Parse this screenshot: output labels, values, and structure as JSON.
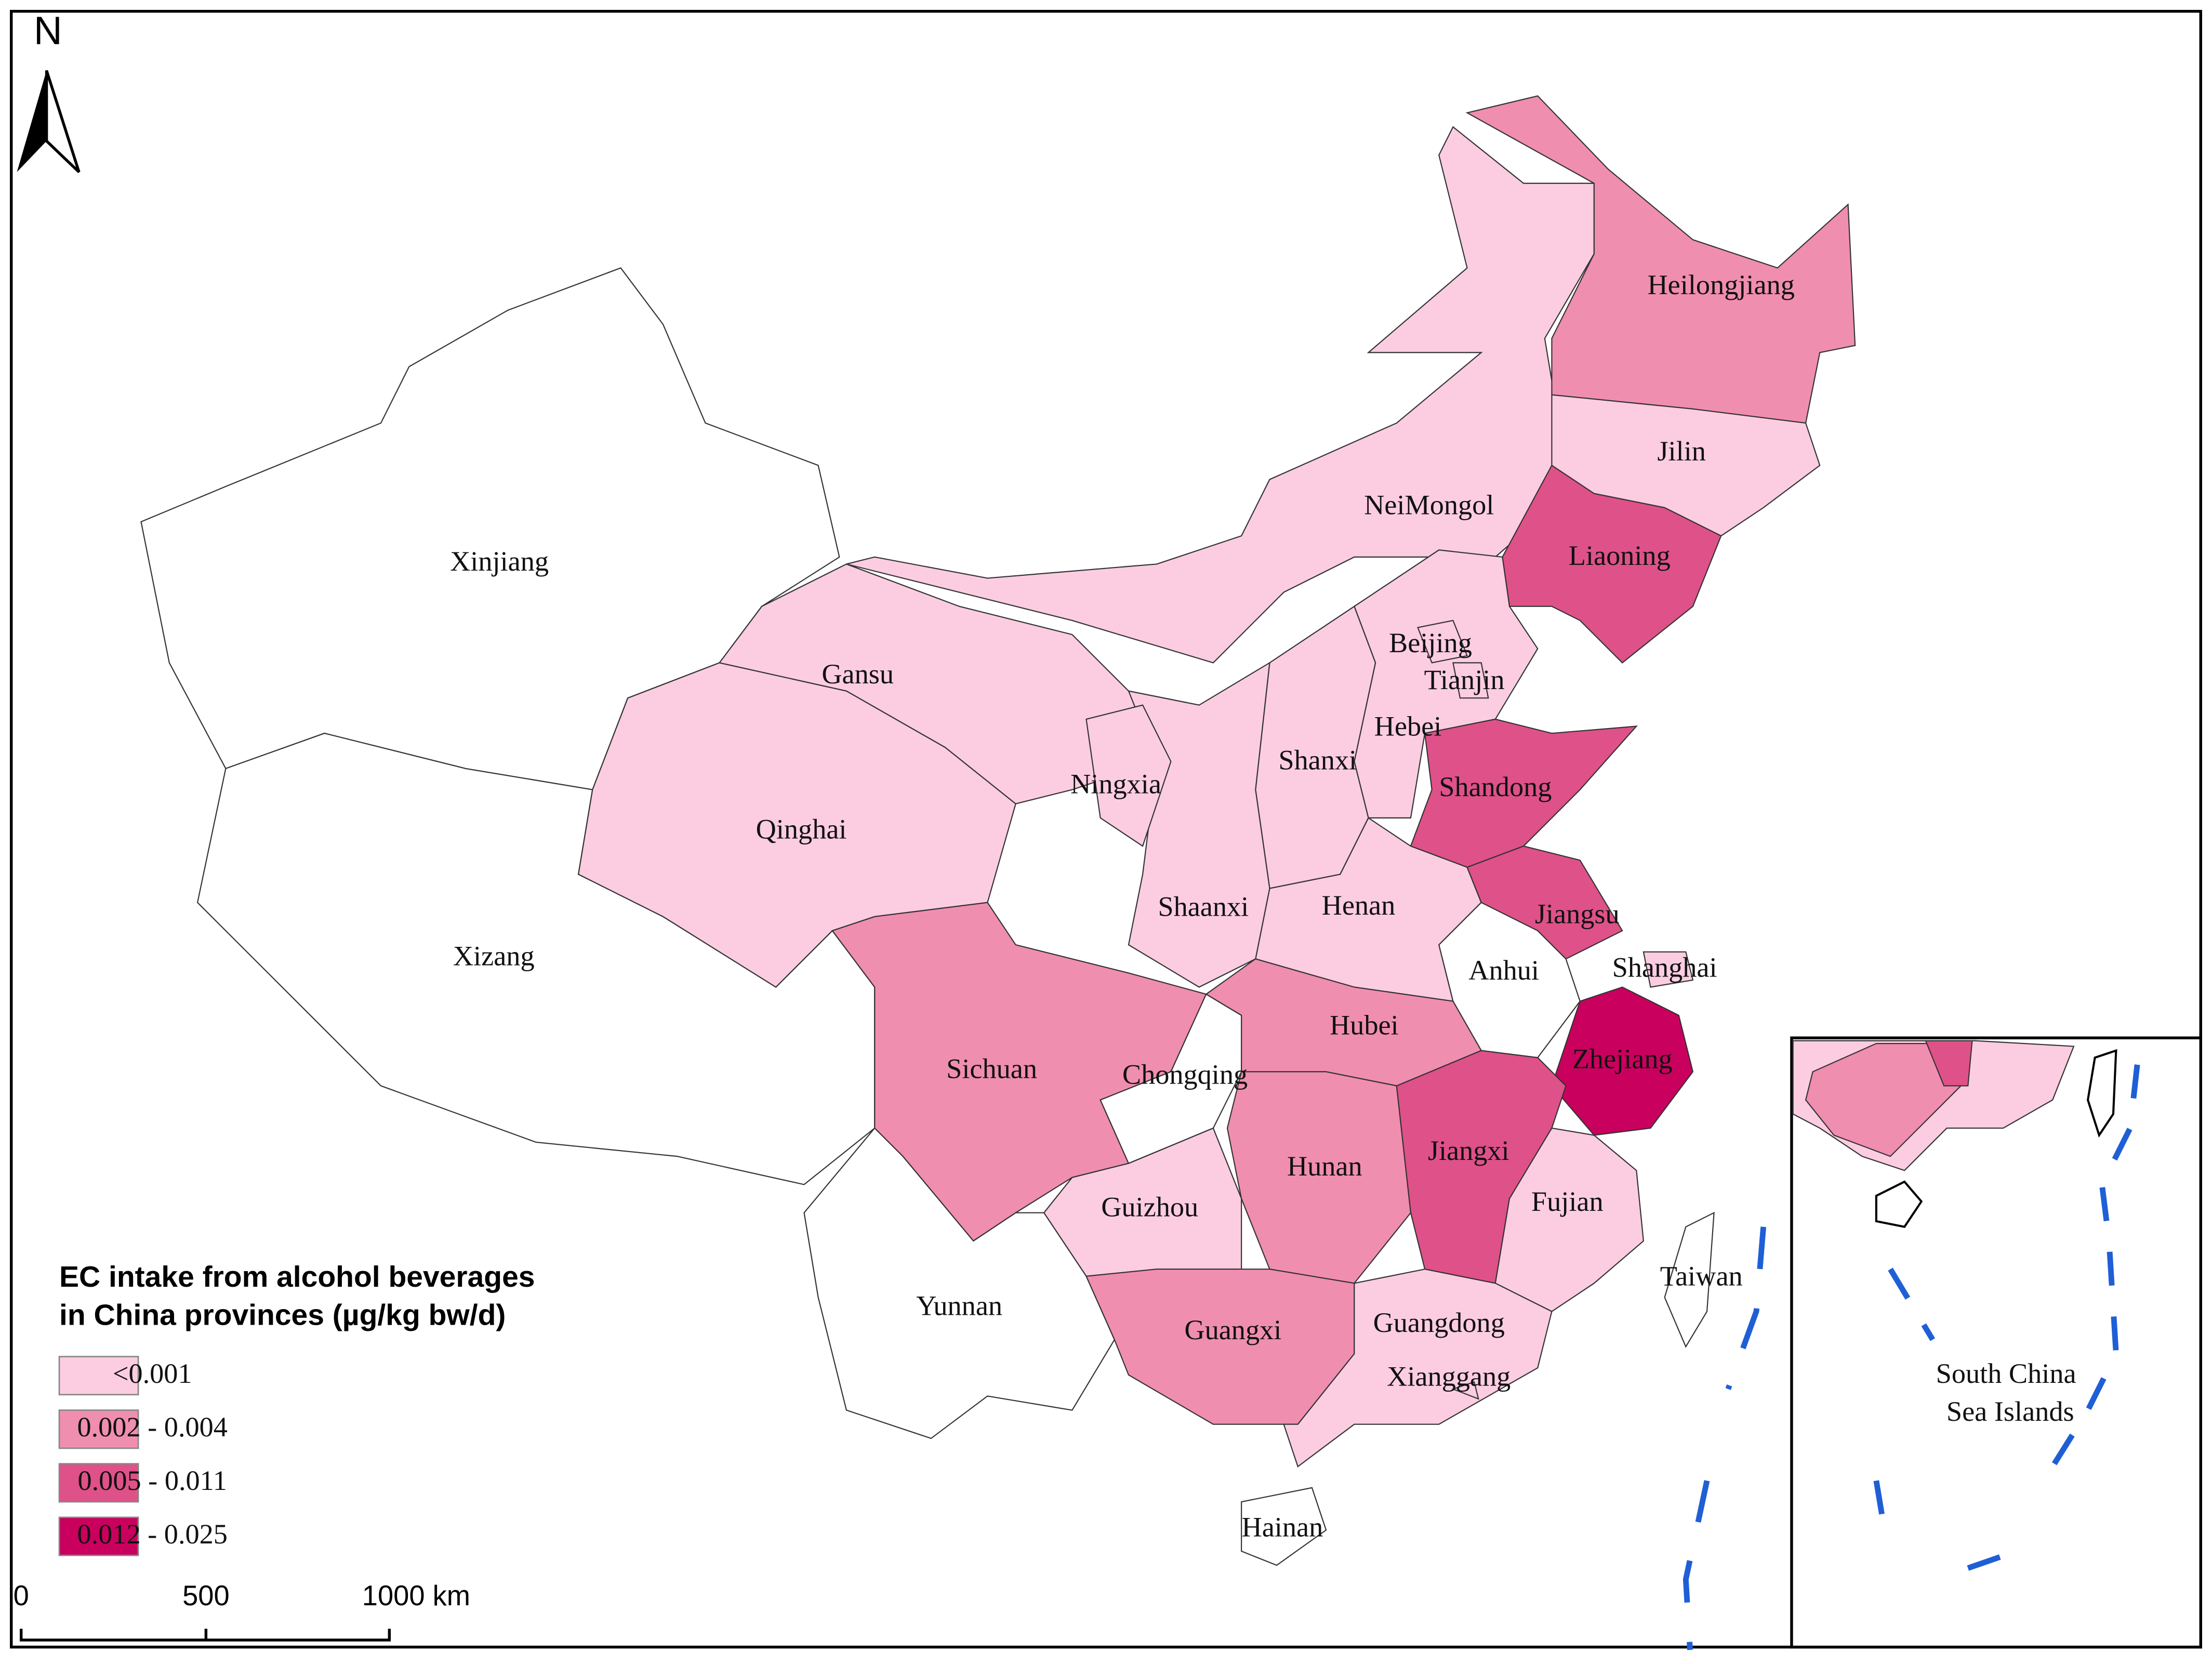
{
  "map": {
    "north_label": "N",
    "legend": {
      "title_lines": [
        "EC intake from alcohol beverages",
        "in China provinces (µg/kg bw/d)"
      ],
      "items": [
        {
          "label": "<0.001",
          "color": "#fccde1"
        },
        {
          "label": "0.002 - 0.004",
          "color": "#f08eb0"
        },
        {
          "label": "0.005 - 0.011",
          "color": "#df5189"
        },
        {
          "label": "0.012 - 0.025",
          "color": "#c9005e"
        }
      ]
    },
    "scale_labels": [
      "0",
      "500",
      "1000 km"
    ],
    "inset_label_lines": [
      "South China",
      "Sea Islands"
    ],
    "provinces": [
      {
        "name": "Xinjiang",
        "color": "#ffffff"
      },
      {
        "name": "Xizang",
        "color": "#ffffff"
      },
      {
        "name": "Qinghai",
        "color": "#fccde1"
      },
      {
        "name": "Gansu",
        "color": "#fccde1"
      },
      {
        "name": "NeiMongol",
        "color": "#fccde1"
      },
      {
        "name": "Heilongjiang",
        "color": "#f08eb0"
      },
      {
        "name": "Jilin",
        "color": "#fccde1"
      },
      {
        "name": "Liaoning",
        "color": "#df5189"
      },
      {
        "name": "Hebei",
        "color": "#fccde1"
      },
      {
        "name": "Beijing",
        "color": "#fccde1"
      },
      {
        "name": "Tianjin",
        "color": "#fccde1"
      },
      {
        "name": "Shanxi",
        "color": "#fccde1"
      },
      {
        "name": "Shandong",
        "color": "#df5189"
      },
      {
        "name": "Henan",
        "color": "#fccde1"
      },
      {
        "name": "Jiangsu",
        "color": "#df5189"
      },
      {
        "name": "Anhui",
        "color": "#ffffff"
      },
      {
        "name": "Shanghai",
        "color": "#fccde1"
      },
      {
        "name": "Zhejiang",
        "color": "#c9005e"
      },
      {
        "name": "Shaanxi",
        "color": "#fccde1"
      },
      {
        "name": "Ningxia",
        "color": "#fccde1"
      },
      {
        "name": "Sichuan",
        "color": "#f08eb0"
      },
      {
        "name": "Chongqing",
        "color": "#ffffff"
      },
      {
        "name": "Hubei",
        "color": "#f08eb0"
      },
      {
        "name": "Hunan",
        "color": "#f08eb0"
      },
      {
        "name": "Jiangxi",
        "color": "#df5189"
      },
      {
        "name": "Fujian",
        "color": "#fccde1"
      },
      {
        "name": "Guizhou",
        "color": "#fccde1"
      },
      {
        "name": "Yunnan",
        "color": "#ffffff"
      },
      {
        "name": "Guangxi",
        "color": "#f08eb0"
      },
      {
        "name": "Guangdong",
        "color": "#fccde1"
      },
      {
        "name": "Xianggang",
        "color": "#fccde1"
      },
      {
        "name": "Hainan",
        "color": "#ffffff"
      },
      {
        "name": "Taiwan",
        "color": "#ffffff"
      }
    ]
  }
}
